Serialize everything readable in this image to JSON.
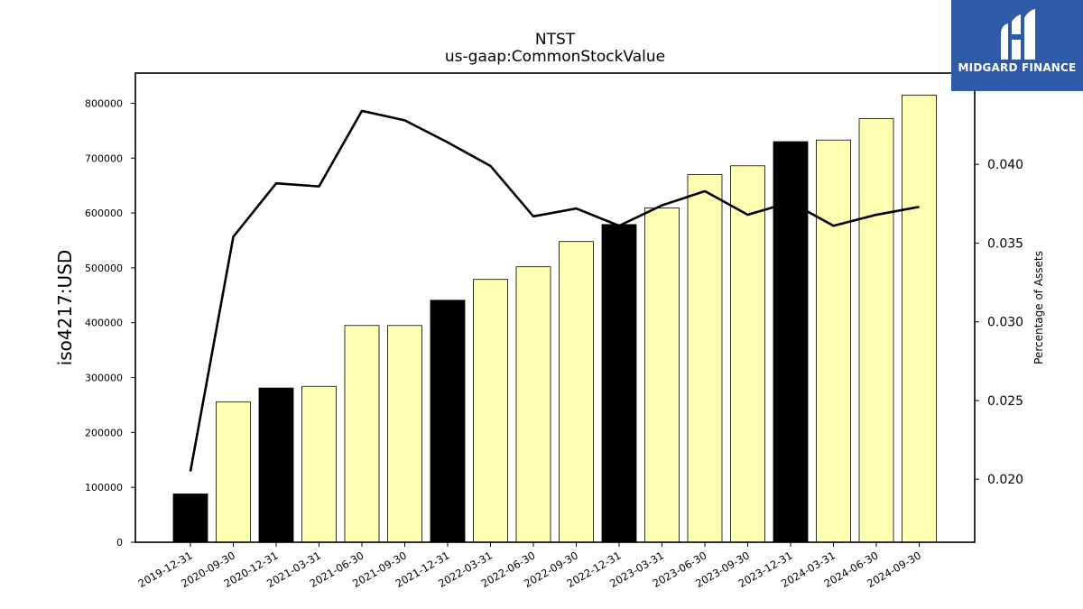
{
  "brand": {
    "name": "MIDGARD FINANCE",
    "bg_color": "#2f5aa8"
  },
  "chart_data": {
    "type": "bar",
    "title": "NTST",
    "subtitle": "us-gaap:CommonStockValue",
    "ylabel": "iso4217:USD",
    "y2label": "Percentage of Assets",
    "ylim": [
      0,
      855000
    ],
    "y2lim": [
      0.016,
      0.0458
    ],
    "yticks": [
      0,
      100000,
      200000,
      300000,
      400000,
      500000,
      600000,
      700000,
      800000
    ],
    "y2ticks": [
      0.02,
      0.025,
      0.03,
      0.035,
      0.04
    ],
    "y2tick_labels": [
      "0.020",
      "0.025",
      "0.030",
      "0.035",
      "0.040"
    ],
    "categories": [
      "2019-12-31",
      "2020-09-30",
      "2020-12-31",
      "2021-03-31",
      "2021-06-30",
      "2021-09-30",
      "2021-12-31",
      "2022-03-31",
      "2022-06-30",
      "2022-09-30",
      "2022-12-31",
      "2023-03-31",
      "2023-06-30",
      "2023-09-30",
      "2023-12-31",
      "2024-03-31",
      "2024-06-30",
      "2024-09-30"
    ],
    "series": [
      {
        "type": "bar",
        "values": [
          88000,
          256000,
          281000,
          284000,
          395000,
          395000,
          441000,
          479000,
          502000,
          548000,
          579000,
          609000,
          670000,
          686000,
          730000,
          733000,
          772000,
          815000
        ]
      },
      {
        "type": "line",
        "axis": "right",
        "values": [
          0.0205,
          0.0354,
          0.0388,
          0.0386,
          0.0434,
          0.0428,
          0.0414,
          0.0399,
          0.0367,
          0.0372,
          0.0361,
          0.0374,
          0.0383,
          0.0368,
          0.0376,
          0.0361,
          0.0368,
          0.0373
        ]
      }
    ],
    "bar_colors": [
      "#000000",
      "#ffffb3",
      "#000000",
      "#ffffb3",
      "#ffffb3",
      "#ffffb3",
      "#000000",
      "#ffffb3",
      "#ffffb3",
      "#ffffb3",
      "#000000",
      "#ffffb3",
      "#ffffb3",
      "#ffffb3",
      "#000000",
      "#ffffb3",
      "#ffffb3",
      "#ffffb3"
    ],
    "line_color": "#000000",
    "grid": false,
    "legend": "none"
  }
}
